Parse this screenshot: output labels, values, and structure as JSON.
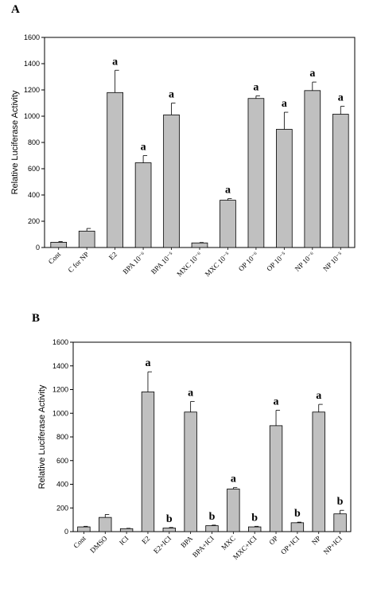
{
  "chart_data": [
    {
      "type": "bar",
      "panel": "A",
      "ylabel": "Relative Luciferase Activity",
      "ylim": [
        0,
        1600
      ],
      "yticks": [
        0,
        200,
        400,
        600,
        800,
        1000,
        1200,
        1400,
        1600
      ],
      "categories": [
        "Cont",
        "C for NP",
        "E2",
        "BPA 10⁻⁶",
        "BPA 10⁻⁵",
        "MXC 10⁻⁶",
        "MXC 10⁻⁵",
        "OP 10⁻⁶",
        "OP 10⁻⁵",
        "NP 10⁻⁶",
        "NP 10⁻⁵"
      ],
      "values": [
        40,
        125,
        1180,
        645,
        1010,
        35,
        360,
        1135,
        900,
        1195,
        1015
      ],
      "errors": [
        5,
        20,
        170,
        55,
        90,
        3,
        12,
        20,
        130,
        65,
        60
      ],
      "annotations": [
        "",
        "",
        "a",
        "a",
        "a",
        "",
        "a",
        "a",
        "a",
        "a",
        "a"
      ],
      "bar_color": "#c0c0c0",
      "grid": false
    },
    {
      "type": "bar",
      "panel": "B",
      "ylabel": "Relative Luciferase Activity",
      "ylim": [
        0,
        1600
      ],
      "yticks": [
        0,
        200,
        400,
        600,
        800,
        1000,
        1200,
        1400,
        1600
      ],
      "categories": [
        "Cont",
        "DMSO",
        "ICI",
        "E2",
        "E2+ICI",
        "BPA",
        "BPA+ICI",
        "MXC",
        "MXC+ICI",
        "OP",
        "OP+ICI",
        "NP",
        "NP+ICI"
      ],
      "values": [
        40,
        120,
        25,
        1180,
        30,
        1010,
        50,
        360,
        40,
        895,
        75,
        1010,
        150
      ],
      "errors": [
        5,
        25,
        3,
        170,
        5,
        90,
        5,
        12,
        5,
        130,
        5,
        65,
        30
      ],
      "annotations": [
        "",
        "",
        "",
        "a",
        "b",
        "a",
        "b",
        "a",
        "b",
        "a",
        "b",
        "a",
        "b"
      ],
      "bar_color": "#c0c0c0",
      "grid": false
    }
  ]
}
